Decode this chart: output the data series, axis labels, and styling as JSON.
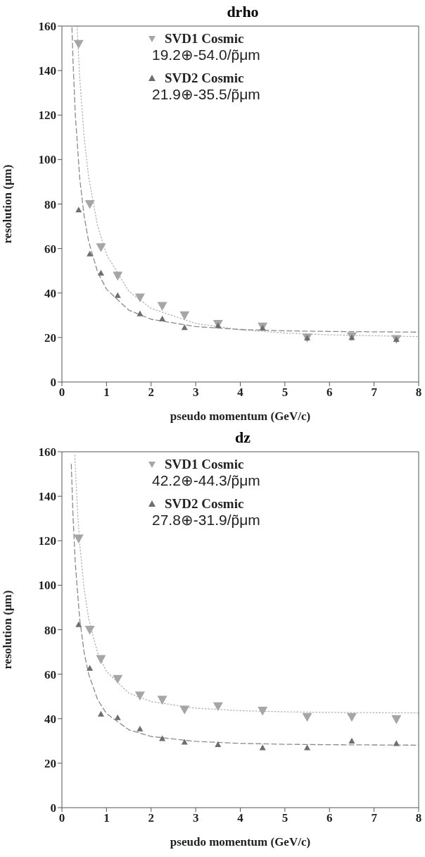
{
  "chart_data": [
    {
      "type": "scatter",
      "title": "drho",
      "xlabel": "pseudo momentum (GeV/c)",
      "ylabel": "resolution (μm)",
      "xlim": [
        0,
        8
      ],
      "ylim": [
        0,
        160
      ],
      "xticks": [
        0,
        1,
        2,
        3,
        4,
        5,
        6,
        7,
        8
      ],
      "yticks": [
        0,
        20,
        40,
        60,
        80,
        100,
        120,
        140,
        160
      ],
      "legend": "top",
      "annotations": [
        "19.2⊕-54.0/p̃μm",
        "21.9⊕-35.5/p̃μm"
      ],
      "series": [
        {
          "name": "SVD1 Cosmic",
          "color": "#a6a6a6",
          "marker": "triangle-down",
          "x": [
            0.375,
            0.625,
            0.875,
            1.25,
            1.75,
            2.25,
            2.75,
            3.5,
            4.5,
            5.5,
            6.5,
            7.5
          ],
          "values": [
            152,
            80,
            60.6,
            47.8,
            38,
            34.2,
            30,
            26.1,
            24.9,
            20,
            20.6,
            19.3
          ]
        },
        {
          "name": "SVD2 Cosmic",
          "color": "#6e6e6e",
          "marker": "triangle",
          "x": [
            0.375,
            0.625,
            0.875,
            1.25,
            1.75,
            2.25,
            2.75,
            3.5,
            4.5,
            5.5,
            6.5,
            7.5
          ],
          "values": [
            77.4,
            57.6,
            49,
            38.9,
            30.7,
            28.4,
            24.5,
            25.4,
            24.3,
            19.8,
            20,
            19.2
          ]
        },
        {
          "type": "line",
          "color": "#b4b4b4",
          "line_style": "dotted",
          "marker": "none",
          "x": [
            0.34,
            0.4,
            0.5,
            0.6,
            0.8,
            1,
            1.5,
            2,
            3,
            4,
            5,
            6,
            8
          ],
          "values": [
            160,
            136.4,
            109.7,
            92,
            70.2,
            57.3,
            40.8,
            33.1,
            26.3,
            23.5,
            22,
            21.2,
            20.4
          ]
        },
        {
          "type": "line",
          "color": "#8a8a8a",
          "line_style": "dashed",
          "marker": "none",
          "x": [
            0.225,
            0.25,
            0.3,
            0.4,
            0.5,
            0.6,
            0.8,
            1,
            1.5,
            2,
            3,
            4,
            5,
            6,
            8
          ],
          "values": [
            159.3,
            143.7,
            120.3,
            91.4,
            74.3,
            63.1,
            49.5,
            41.7,
            32.3,
            28.2,
            24.9,
            23.6,
            23,
            22.7,
            22.4
          ]
        }
      ]
    },
    {
      "type": "scatter",
      "title": "dz",
      "xlabel": "pseudo momentum (GeV/c)",
      "ylabel": "resolution (μm)",
      "xlim": [
        0,
        8
      ],
      "ylim": [
        0,
        160
      ],
      "xticks": [
        0,
        1,
        2,
        3,
        4,
        5,
        6,
        7,
        8
      ],
      "yticks": [
        0,
        20,
        40,
        60,
        80,
        100,
        120,
        140,
        160
      ],
      "legend": "top",
      "annotations": [
        "42.2⊕-44.3/p̃μm",
        "27.8⊕-31.9/p̃μm"
      ],
      "series": [
        {
          "name": "SVD1 Cosmic",
          "color": "#a6a6a6",
          "marker": "triangle-down",
          "x": [
            0.375,
            0.625,
            0.875,
            1.25,
            1.75,
            2.25,
            2.75,
            3.5,
            4.5,
            5.5,
            6.5,
            7.5
          ],
          "values": [
            121,
            80,
            66.8,
            57.9,
            50.4,
            48.5,
            44.1,
            45.6,
            43.6,
            40.8,
            40.8,
            39.8
          ]
        },
        {
          "name": "SVD2 Cosmic",
          "color": "#6e6e6e",
          "marker": "triangle",
          "x": [
            0.375,
            0.625,
            0.875,
            1.25,
            1.75,
            2.25,
            2.75,
            3.5,
            4.5,
            5.5,
            6.5,
            7.5
          ],
          "values": [
            82.3,
            62.7,
            42.1,
            40.5,
            35.4,
            31.1,
            29.5,
            28.4,
            27,
            27,
            30,
            28.9
          ]
        },
        {
          "type": "line",
          "color": "#b4b4b4",
          "line_style": "dotted",
          "marker": "none",
          "x": [
            0.29,
            0.3,
            0.35,
            0.4,
            0.5,
            0.6,
            0.8,
            1,
            1.5,
            2,
            3,
            4,
            5,
            6,
            8
          ],
          "values": [
            158.5,
            153.6,
            133.4,
            118.5,
            98.1,
            85,
            69.6,
            61.2,
            51.5,
            47.7,
            44.7,
            43.6,
            43.1,
            42.8,
            42.6
          ]
        },
        {
          "type": "line",
          "color": "#8a8a8a",
          "line_style": "dashed",
          "marker": "none",
          "x": [
            0.21,
            0.25,
            0.3,
            0.4,
            0.5,
            0.6,
            0.8,
            1,
            1.5,
            2,
            3,
            4,
            5,
            6,
            8
          ],
          "values": [
            154.4,
            130.6,
            109.9,
            84.5,
            69.6,
            60,
            48.6,
            42.3,
            35,
            32,
            29.8,
            28.9,
            28.5,
            28.3,
            28.1
          ]
        }
      ]
    }
  ]
}
